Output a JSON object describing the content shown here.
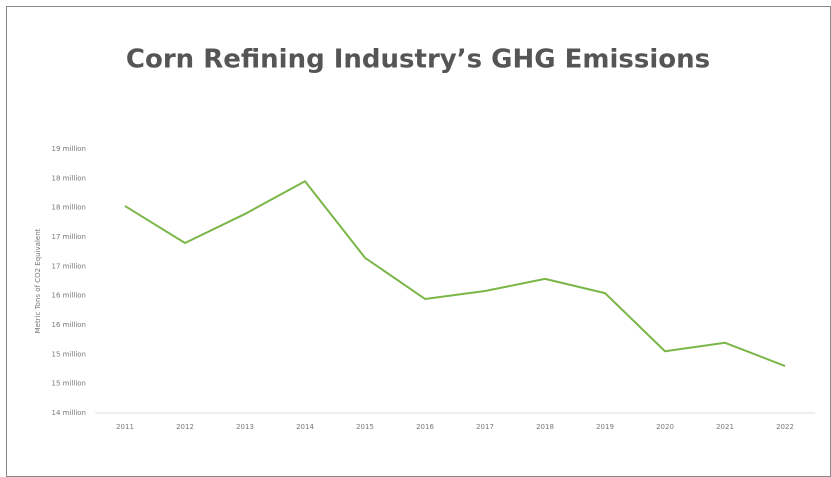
{
  "chart_data": {
    "type": "line",
    "title": "Corn Refining Industry’s GHG Emissions",
    "y_label": "Metric Tons of CO2 Equivalent",
    "categories": [
      "2011",
      "2012",
      "2013",
      "2014",
      "2015",
      "2016",
      "2017",
      "2018",
      "2019",
      "2020",
      "2021",
      "2022"
    ],
    "series": [
      {
        "name": "GHG Emissions",
        "color": "#7ab648",
        "values": [
          17920000,
          17220000,
          17770000,
          18390000,
          16940000,
          16160000,
          16310000,
          16540000,
          16270000,
          15170000,
          15330000,
          14890000
        ]
      }
    ],
    "ylim": [
      14000000,
      19000000
    ],
    "yticks": [
      {
        "value": 14000000,
        "label": "14 million"
      },
      {
        "value": 14555555.56,
        "label": "15 million"
      },
      {
        "value": 15111111.11,
        "label": "15 million"
      },
      {
        "value": 15666666.67,
        "label": "16 million"
      },
      {
        "value": 16222222.22,
        "label": "16 million"
      },
      {
        "value": 16777777.78,
        "label": "17 million"
      },
      {
        "value": 17333333.33,
        "label": "17 million"
      },
      {
        "value": 17888888.89,
        "label": "18 million"
      },
      {
        "value": 18444444.44,
        "label": "18 million"
      },
      {
        "value": 19000000,
        "label": "19 million"
      }
    ],
    "grid": false
  }
}
